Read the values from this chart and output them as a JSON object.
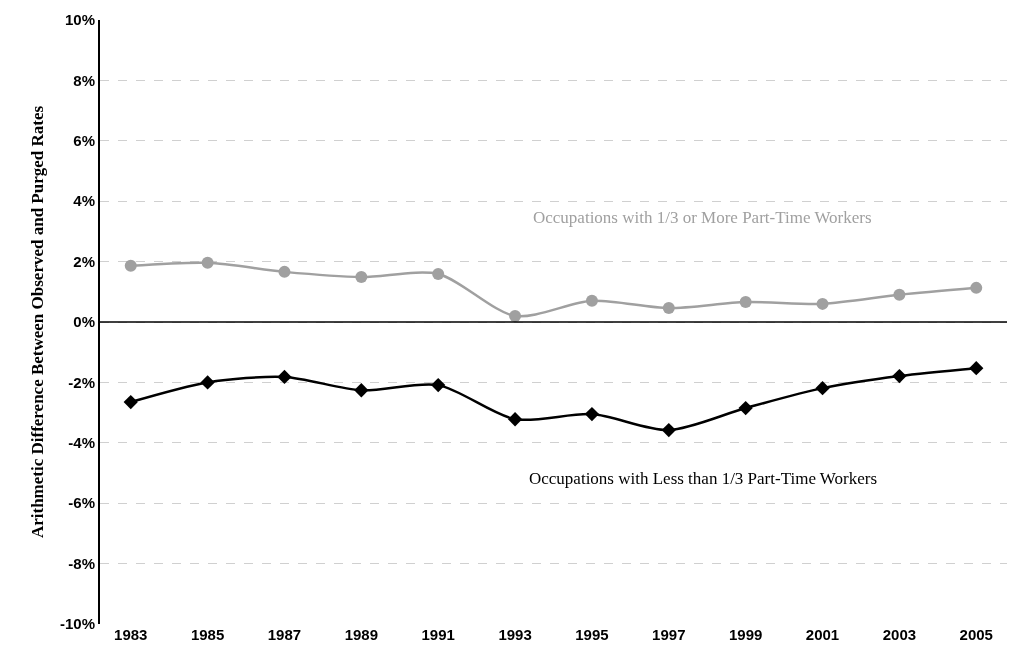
{
  "chart_data": {
    "type": "line",
    "ylabel": "Arithmetic Difference Between Observed and Purged Rates",
    "categories": [
      "1983",
      "1985",
      "1987",
      "1989",
      "1991",
      "1993",
      "1995",
      "1997",
      "1999",
      "2001",
      "2003",
      "2005"
    ],
    "series": [
      {
        "name": "Occupations with 1/3 or More Part-Time Workers",
        "color": "#a0a0a0",
        "marker": "circle",
        "values": [
          1.86,
          1.96,
          1.66,
          1.49,
          1.59,
          0.2,
          0.7,
          0.46,
          0.66,
          0.6,
          0.9,
          1.13
        ]
      },
      {
        "name": "Occupations with Less than 1/3 Part-Time Workers",
        "color": "#000000",
        "marker": "diamond",
        "values": [
          -2.65,
          -2.0,
          -1.82,
          -2.26,
          -2.09,
          -3.22,
          -3.05,
          -3.58,
          -2.85,
          -2.19,
          -1.79,
          -1.53
        ]
      }
    ],
    "ylim": [
      -10,
      10
    ],
    "yticks": [
      {
        "value": -10,
        "label": "-10%"
      },
      {
        "value": -8,
        "label": "-8%"
      },
      {
        "value": -6,
        "label": "-6%"
      },
      {
        "value": -4,
        "label": "-4%"
      },
      {
        "value": -2,
        "label": "-2%"
      },
      {
        "value": 0,
        "label": "0%"
      },
      {
        "value": 2,
        "label": "2%"
      },
      {
        "value": 4,
        "label": "4%"
      },
      {
        "value": 6,
        "label": "6%"
      },
      {
        "value": 8,
        "label": "8%"
      },
      {
        "value": 10,
        "label": "10%"
      }
    ],
    "grid": "y",
    "legend": false,
    "ref_lines": [
      {
        "axis": "y",
        "value": 0,
        "color": "#000000"
      }
    ]
  }
}
